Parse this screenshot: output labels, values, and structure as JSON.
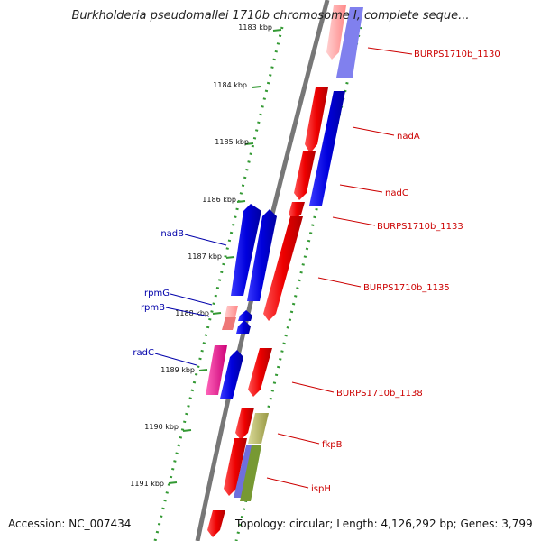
{
  "title": "Burkholderia pseudomallei 1710b chromosome I, complete seque...",
  "footer": {
    "accession": "Accession: NC_007434",
    "topology": "Topology: circular; Length: 4,126,292 bp; Genes: 3,799"
  },
  "ticks": [
    "1183 kbp",
    "1184 kbp",
    "1185 kbp",
    "1186 kbp",
    "1187 kbp",
    "1188 kbp",
    "1189 kbp",
    "1190 kbp",
    "1191 kbp"
  ],
  "colors": {
    "forward": "#ee0000",
    "reverse": "#0000dd",
    "rrna_pink": "#ff3399",
    "tick": "#339933",
    "backbone": "#777777",
    "label_forward": "#cc0000",
    "label_reverse": "#0000aa"
  },
  "genes_right": [
    "BURPS1710b_1130",
    "nadA",
    "nadC",
    "BURPS1710b_1133",
    "BURPS1710b_1135",
    "BURPS1710b_1138",
    "fkpB",
    "ispH"
  ],
  "genes_left": [
    "nadB",
    "rpmG",
    "rpmB",
    "radC"
  ]
}
